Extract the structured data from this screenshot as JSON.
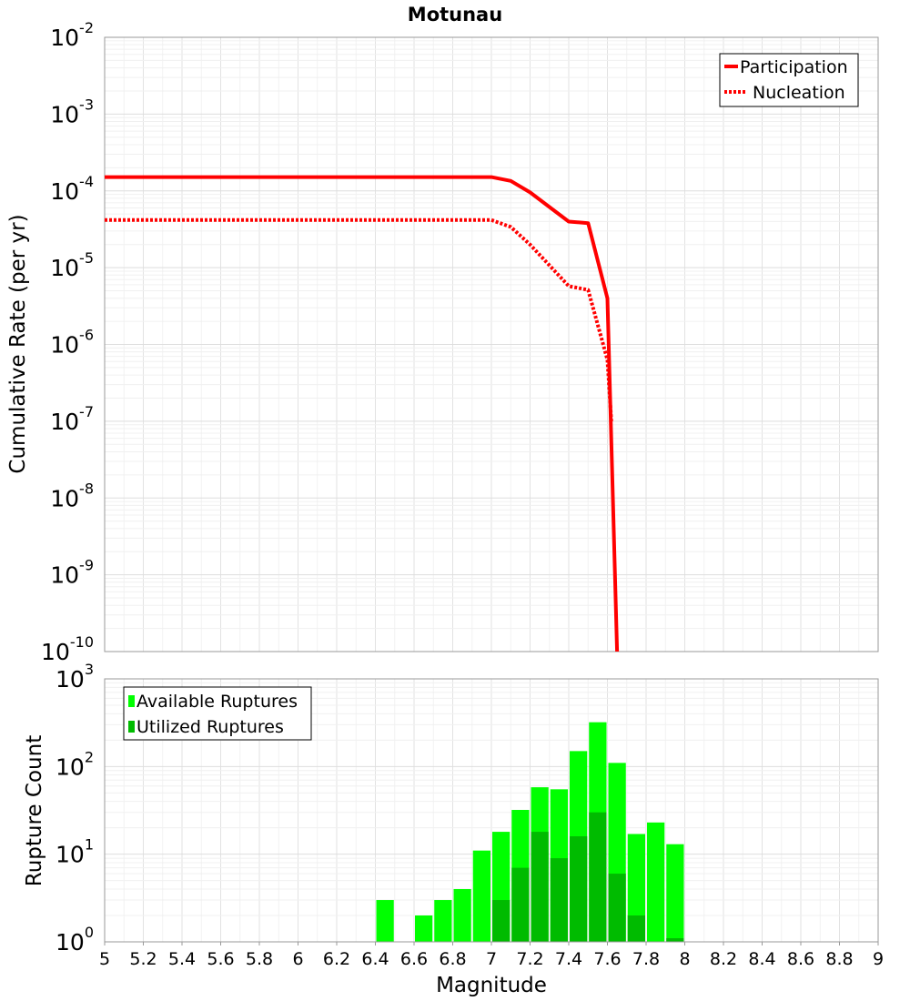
{
  "chart_data": [
    {
      "type": "line",
      "title": "Motunau",
      "xlabel": "Magnitude",
      "ylabel": "Cumulative Rate (per yr)",
      "yscale": "log",
      "xlim": [
        5,
        9
      ],
      "ylim_exponents": [
        -10,
        -2
      ],
      "y_tick_labels": [
        {
          "base": "10",
          "exp": "-2"
        },
        {
          "base": "10",
          "exp": "-3"
        },
        {
          "base": "10",
          "exp": "-4"
        },
        {
          "base": "10",
          "exp": "-5"
        },
        {
          "base": "10",
          "exp": "-6"
        },
        {
          "base": "10",
          "exp": "-7"
        },
        {
          "base": "10",
          "exp": "-8"
        },
        {
          "base": "10",
          "exp": "-9"
        },
        {
          "base": "10",
          "exp": "-10"
        }
      ],
      "legend": {
        "position": "top-right",
        "entries": [
          "Participation",
          "Nucleation"
        ]
      },
      "series": [
        {
          "name": "Participation",
          "color": "#ff0000",
          "style": "solid",
          "x": [
            5.0,
            7.0,
            7.1,
            7.2,
            7.3,
            7.4,
            7.5,
            7.6,
            7.65
          ],
          "y_log10": [
            -3.82,
            -3.82,
            -3.87,
            -4.02,
            -4.21,
            -4.4,
            -4.42,
            -5.4,
            -10.0
          ]
        },
        {
          "name": "Nucleation",
          "color": "#ff0000",
          "style": "dotted",
          "x": [
            5.0,
            7.0,
            7.1,
            7.2,
            7.3,
            7.4,
            7.5,
            7.6,
            7.62
          ],
          "y_log10": [
            -4.38,
            -4.38,
            -4.47,
            -4.7,
            -4.97,
            -5.24,
            -5.29,
            -6.2,
            -7.0
          ]
        }
      ]
    },
    {
      "type": "bar",
      "xlabel": "Magnitude",
      "ylabel": "Rupture Count",
      "yscale": "log",
      "xlim": [
        5,
        9
      ],
      "ylim_exponents": [
        0,
        3
      ],
      "y_tick_labels": [
        {
          "base": "10",
          "exp": "3"
        },
        {
          "base": "10",
          "exp": "2"
        },
        {
          "base": "10",
          "exp": "1"
        },
        {
          "base": "10",
          "exp": "0"
        }
      ],
      "x_tick_labels": [
        "5",
        "5.2",
        "5.4",
        "5.6",
        "5.8",
        "6",
        "6.2",
        "6.4",
        "6.6",
        "6.8",
        "7",
        "7.2",
        "7.4",
        "7.6",
        "7.8",
        "8",
        "8.2",
        "8.4",
        "8.6",
        "8.8",
        "9"
      ],
      "legend": {
        "position": "top-left",
        "entries": [
          "Available Ruptures",
          "Utilized Ruptures"
        ]
      },
      "bin_width": 0.1,
      "series": [
        {
          "name": "Available Ruptures",
          "color": "#00ff00",
          "x": [
            6.45,
            6.65,
            6.75,
            6.85,
            6.95,
            7.05,
            7.15,
            7.25,
            7.35,
            7.45,
            7.55,
            7.65,
            7.75,
            7.85,
            7.95
          ],
          "values": [
            3,
            2,
            3,
            4,
            11,
            18,
            32,
            58,
            55,
            150,
            320,
            110,
            17,
            23,
            13
          ]
        },
        {
          "name": "Utilized Ruptures",
          "color": "#00bb00",
          "x": [
            7.05,
            7.15,
            7.25,
            7.35,
            7.45,
            7.55,
            7.65,
            7.75,
            7.95
          ],
          "values": [
            3,
            7,
            18,
            9,
            16,
            30,
            6,
            2,
            1.1
          ]
        }
      ]
    }
  ]
}
